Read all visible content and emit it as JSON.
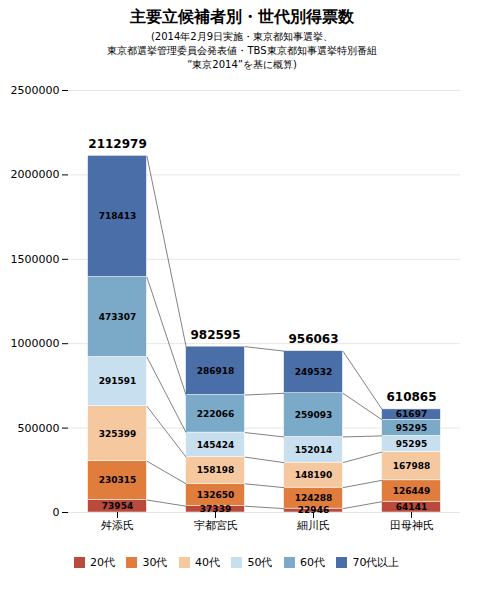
{
  "chart_data": {
    "type": "bar",
    "stacked": true,
    "title": "主要立候補者別・世代別得票数",
    "subtitle": [
      "(2014年2月9日実施・東京都知事選挙、",
      "東京都選挙管理委員会発表値・TBS東京都知事選挙特別番組",
      "“東京2014”を基に概算)"
    ],
    "categories": [
      "舛添氏",
      "宇都宮氏",
      "細川氏",
      "田母神氏"
    ],
    "series": [
      {
        "name": "20代",
        "color": "#b94a3c",
        "values": [
          73954,
          37339,
          22946,
          64141
        ]
      },
      {
        "name": "30代",
        "color": "#e07c3c",
        "values": [
          230315,
          132650,
          124288,
          126449
        ]
      },
      {
        "name": "40代",
        "color": "#f5c8a0",
        "values": [
          325399,
          158198,
          148190,
          167988
        ]
      },
      {
        "name": "50代",
        "color": "#c8dff0",
        "values": [
          291591,
          145424,
          152014,
          95295
        ]
      },
      {
        "name": "60代",
        "color": "#7aaac8",
        "values": [
          473307,
          222066,
          259093,
          95295
        ]
      },
      {
        "name": "70代以上",
        "color": "#4a6ea8",
        "values": [
          718413,
          286918,
          249532,
          61697
        ]
      }
    ],
    "totals": [
      2112979,
      982595,
      956063,
      610865
    ],
    "ylim": [
      0,
      2500000
    ],
    "yticks": [
      0,
      500000,
      1000000,
      1500000,
      2000000,
      2500000
    ],
    "grid": true,
    "legend": "bottom",
    "data_labels": true
  }
}
